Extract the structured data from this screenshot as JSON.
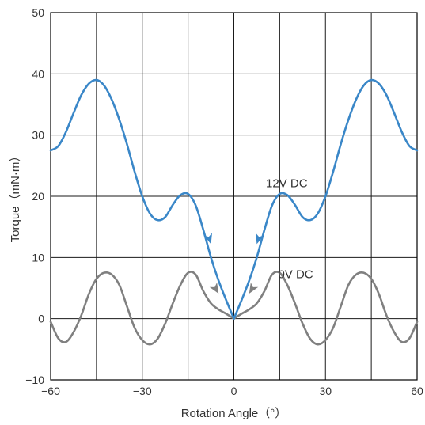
{
  "chart_data": {
    "type": "line",
    "xlabel": "Rotation Angle（°）",
    "ylabel": "Torque（mN·m）",
    "xlim": [
      -60,
      60
    ],
    "ylim": [
      -10,
      50
    ],
    "xticks": [
      -60,
      -30,
      0,
      30,
      60
    ],
    "yticks": [
      -10,
      0,
      10,
      20,
      30,
      40,
      50
    ],
    "xtick_labels": [
      "−60",
      "−30",
      "0",
      "30",
      "60"
    ],
    "ytick_labels": [
      "−10",
      "0",
      "10",
      "20",
      "30",
      "40",
      "50"
    ],
    "grid": true,
    "series": [
      {
        "name": "12V DC",
        "color": "#3a87c8",
        "x": [
          -60,
          -57.5,
          -55,
          -52.5,
          -50,
          -47.5,
          -45,
          -42.5,
          -40,
          -37.5,
          -35,
          -32.5,
          -30,
          -27.5,
          -25,
          -22.5,
          -20,
          -17.5,
          -15,
          -12.5,
          -10,
          -7.5,
          -5,
          -2.5,
          0,
          2.5,
          5,
          7.5,
          10,
          12.5,
          15,
          17.5,
          20,
          22.5,
          25,
          27.5,
          30,
          32.5,
          35,
          37.5,
          40,
          42.5,
          45,
          47.5,
          50,
          52.5,
          55,
          57.5,
          60
        ],
        "y": [
          27.5,
          28.2,
          30.5,
          33.6,
          36.5,
          38.4,
          39,
          38.1,
          35.8,
          32.5,
          28.5,
          24,
          20,
          17.2,
          16.1,
          16.6,
          18.6,
          20.2,
          20.4,
          18.5,
          14.5,
          10,
          6.2,
          3,
          0,
          3,
          6.2,
          10,
          14.5,
          18.5,
          20.4,
          20.2,
          18.6,
          16.6,
          16.1,
          17.2,
          20,
          24,
          28.5,
          32.5,
          35.8,
          38.1,
          39,
          38.4,
          36.5,
          33.6,
          30.5,
          28.2,
          27.5
        ]
      },
      {
        "name": "0V DC",
        "color": "#808080",
        "x": [
          -60,
          -57.5,
          -55,
          -52.5,
          -50,
          -47.5,
          -45,
          -42.5,
          -40,
          -37.5,
          -35,
          -32.5,
          -30,
          -27.5,
          -25,
          -22.5,
          -20,
          -17.5,
          -15,
          -12.5,
          -10,
          -7.5,
          -5,
          -2.5,
          0,
          2.5,
          5,
          7.5,
          10,
          12.5,
          15,
          17.5,
          20,
          22.5,
          25,
          27.5,
          30,
          32.5,
          35,
          37.5,
          40,
          42.5,
          45,
          47.5,
          50,
          52.5,
          55,
          57.5,
          60
        ],
        "y": [
          -0.5,
          -3.2,
          -3.8,
          -2.2,
          0.5,
          4,
          6.5,
          7.5,
          7.2,
          5.5,
          2,
          -1.5,
          -3.5,
          -4.2,
          -3.3,
          -0.8,
          2.5,
          5.5,
          7.5,
          7.2,
          4.5,
          2.5,
          1.5,
          0.8,
          0,
          0.8,
          1.5,
          2.5,
          4.5,
          7.2,
          7.5,
          5.5,
          2.5,
          -0.8,
          -3.3,
          -4.2,
          -3.5,
          -1.5,
          2,
          5.5,
          7.2,
          7.5,
          6.5,
          4,
          0.5,
          -2.2,
          -3.8,
          -3.2,
          -0.5
        ]
      }
    ],
    "annotations": [
      {
        "text": "12V DC",
        "x": 10.5,
        "y": 21.5
      },
      {
        "text": "0V DC",
        "x": 14.5,
        "y": 6.6
      }
    ],
    "arrows": [
      {
        "series": "12V DC",
        "x": -7.5,
        "y": 12.2,
        "direction": "down-right"
      },
      {
        "series": "12V DC",
        "x": 7.5,
        "y": 12.2,
        "direction": "down-left"
      },
      {
        "series": "0V DC",
        "x": -5,
        "y": 4.1,
        "direction": "down-right"
      },
      {
        "series": "0V DC",
        "x": 5,
        "y": 4.1,
        "direction": "down-left"
      }
    ]
  }
}
